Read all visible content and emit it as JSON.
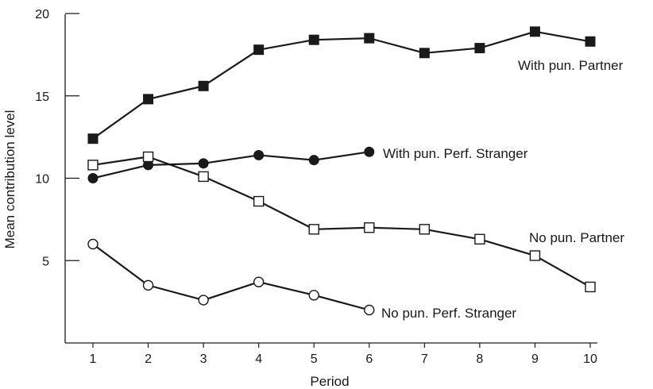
{
  "chart_data": {
    "type": "line",
    "title": "",
    "xlabel": "Period",
    "ylabel": "Mean contribution level",
    "xlim": [
      0.5,
      10.2
    ],
    "ylim": [
      0,
      20
    ],
    "x_ticks": [
      1,
      2,
      3,
      4,
      5,
      6,
      7,
      8,
      9,
      10
    ],
    "y_ticks": [
      5,
      10,
      15,
      20
    ],
    "grid": false,
    "legend": "inline labels next to series",
    "series": [
      {
        "name": "With pun. Partner",
        "marker": "filled-square",
        "x": [
          1,
          2,
          3,
          4,
          5,
          6,
          7,
          8,
          9,
          10
        ],
        "values": [
          12.4,
          14.8,
          15.6,
          17.8,
          18.4,
          18.5,
          17.6,
          17.9,
          18.9,
          18.3
        ]
      },
      {
        "name": "With pun. Perf. Stranger",
        "marker": "filled-circle",
        "x": [
          1,
          2,
          3,
          4,
          5,
          6
        ],
        "values": [
          10.0,
          10.8,
          10.9,
          11.4,
          11.1,
          11.6
        ]
      },
      {
        "name": "No pun. Partner",
        "marker": "open-square",
        "x": [
          1,
          2,
          3,
          4,
          5,
          6,
          7,
          8,
          9,
          10
        ],
        "values": [
          10.8,
          11.3,
          10.1,
          8.6,
          6.9,
          7.0,
          6.9,
          6.3,
          5.3,
          3.4
        ]
      },
      {
        "name": "No pun. Perf. Stranger",
        "marker": "open-circle",
        "x": [
          1,
          2,
          3,
          4,
          5,
          6
        ],
        "values": [
          6.0,
          3.5,
          2.6,
          3.7,
          2.9,
          2.0
        ]
      }
    ],
    "colors": {
      "line": "#1a1a1a",
      "fill": "#1a1a1a",
      "open_fill": "#ffffff"
    }
  }
}
